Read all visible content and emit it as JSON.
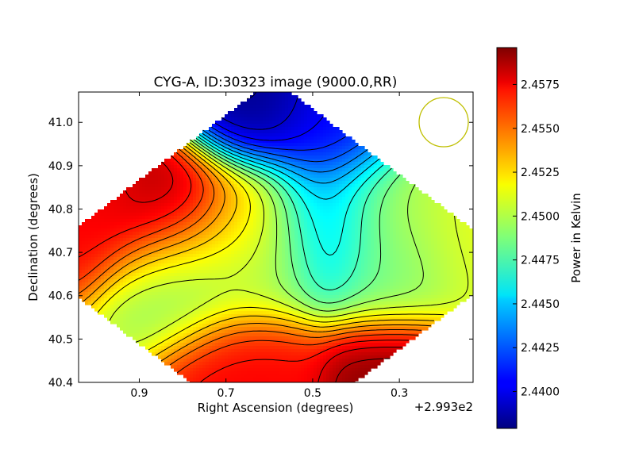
{
  "chart_data": {
    "type": "heatmap",
    "title": "CYG-A, ID:30323 image (9000.0,RR)",
    "xlabel": "Right Ascension (degrees)",
    "ylabel": "Declination (degrees)",
    "x_offset_label": "+2.993e2",
    "x_range": [
      1.04,
      0.13
    ],
    "y_range": [
      40.4,
      41.07
    ],
    "x_ticks": [
      0.9,
      0.7,
      0.5,
      0.3
    ],
    "x_tick_labels": [
      "0.9",
      "0.7",
      "0.5",
      "0.3"
    ],
    "y_ticks": [
      40.4,
      40.5,
      40.6,
      40.7,
      40.8,
      40.9,
      41.0
    ],
    "y_tick_labels": [
      "40.4",
      "40.5",
      "40.6",
      "40.7",
      "40.8",
      "40.9",
      "41.0"
    ],
    "colorbar": {
      "label": "Power in Kelvin",
      "range": [
        2.4379,
        2.4596
      ],
      "ticks": [
        2.4575,
        2.455,
        2.4525,
        2.45,
        2.4475,
        2.445,
        2.4425,
        2.44
      ],
      "tick_labels": [
        "2.4575",
        "2.4550",
        "2.4525",
        "2.4500",
        "2.4475",
        "2.4450",
        "2.4425",
        "2.4400"
      ],
      "colormap": "jet"
    },
    "features": [
      {
        "ra": 0.82,
        "dec": 40.805,
        "value": 2.459,
        "kind": "peak"
      },
      {
        "ra": 1.02,
        "dec": 40.82,
        "value": 2.457,
        "kind": "peak"
      },
      {
        "ra": 0.3,
        "dec": 40.4,
        "value": 2.4595,
        "kind": "peak"
      },
      {
        "ra": 0.66,
        "dec": 40.43,
        "value": 2.457,
        "kind": "peak"
      },
      {
        "ra": 0.65,
        "dec": 40.76,
        "value": 2.4535,
        "kind": "bump"
      },
      {
        "ra": 0.64,
        "dec": 41.04,
        "value": 2.438,
        "kind": "trough"
      },
      {
        "ra": 0.45,
        "dec": 40.98,
        "value": 2.4405,
        "kind": "trough"
      },
      {
        "ra": 0.48,
        "dec": 40.76,
        "value": 2.444,
        "kind": "trough"
      },
      {
        "ra": 0.79,
        "dec": 40.645,
        "value": 2.449,
        "kind": "dip"
      },
      {
        "ra": 0.63,
        "dec": 40.685,
        "value": 2.449,
        "kind": "dip"
      },
      {
        "ra": 0.3,
        "dec": 40.66,
        "value": 2.4485,
        "kind": "dip"
      },
      {
        "ra": 0.32,
        "dec": 40.8,
        "value": 2.45,
        "kind": "plateau"
      },
      {
        "ra": 0.15,
        "dec": 40.72,
        "value": 2.451,
        "kind": "plateau"
      }
    ],
    "beam_marker": {
      "shape": "circle",
      "color": "#bfbf00",
      "ra": 0.235,
      "dec": 41.0
    }
  }
}
